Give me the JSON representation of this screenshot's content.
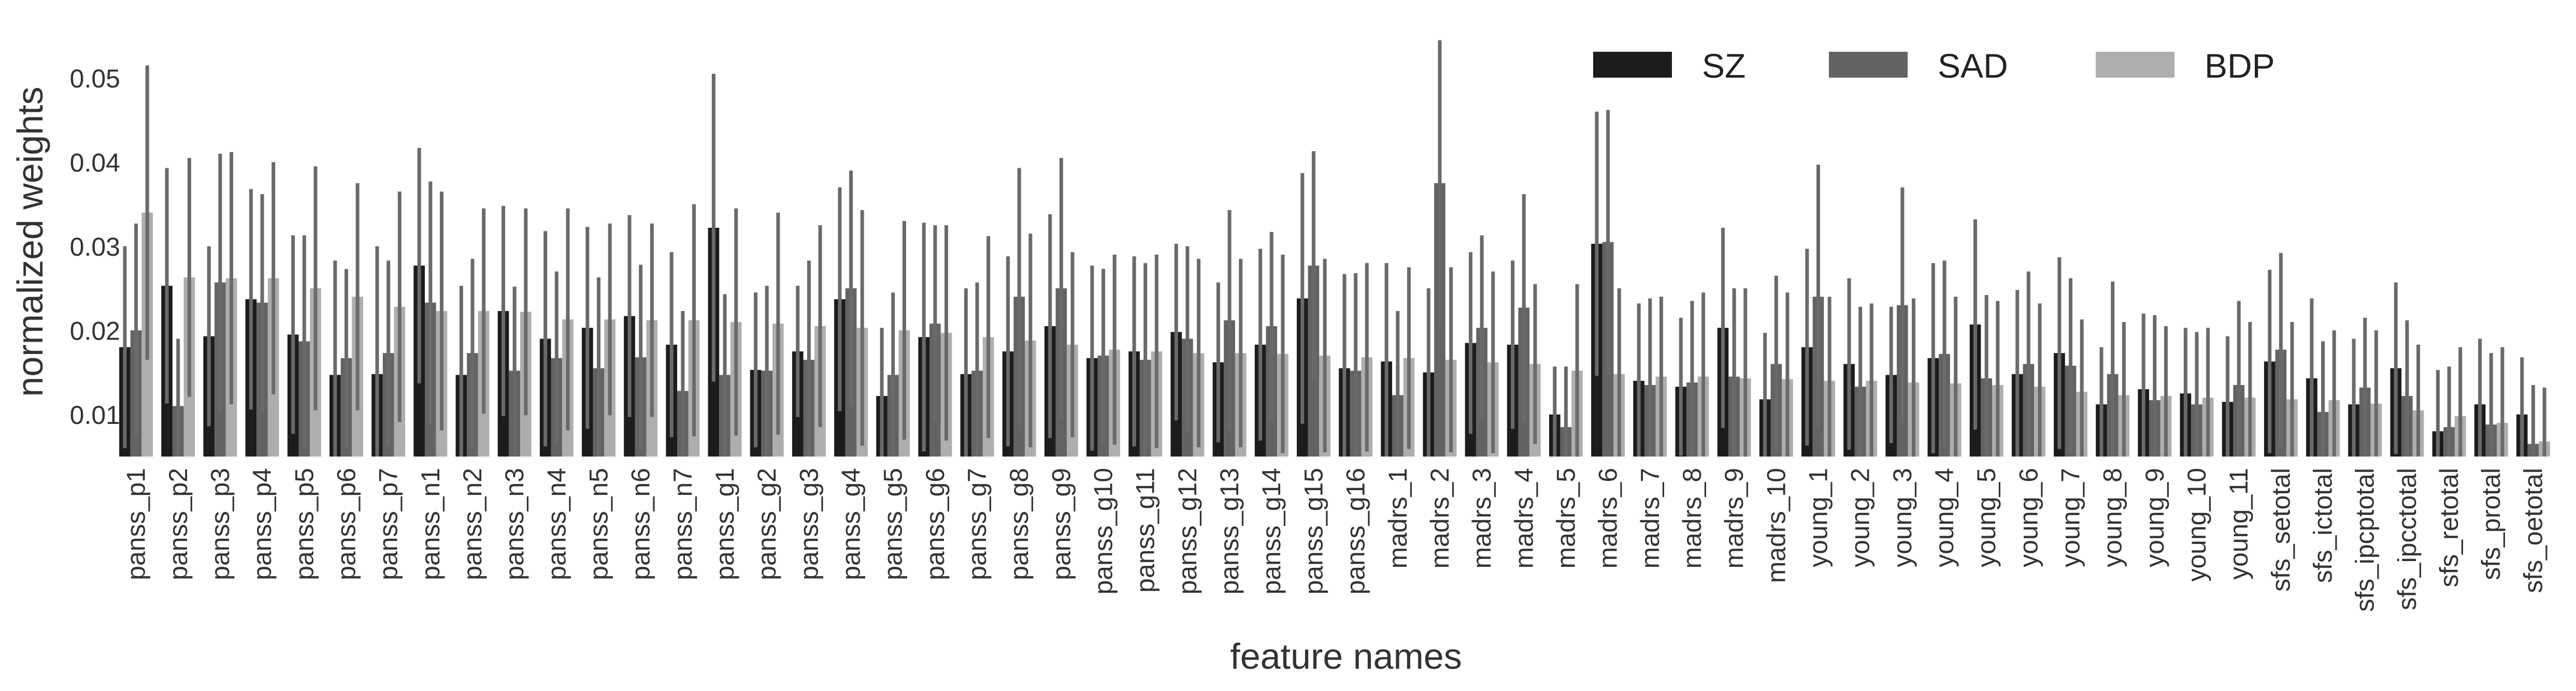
{
  "chart_data": {
    "type": "bar",
    "title": "",
    "xlabel": "feature names",
    "ylabel": "normalized weights",
    "ylim": [
      0.005,
      0.055
    ],
    "yticks": [
      0.01,
      0.02,
      0.03,
      0.04,
      0.05
    ],
    "ytick_labels": [
      "0.01",
      "0.02",
      "0.03",
      "0.04",
      "0.05"
    ],
    "grid": false,
    "legend": "top-right",
    "categories": [
      "panss_p1",
      "panss_p2",
      "panss_p3",
      "panss_p4",
      "panss_p5",
      "panss_p6",
      "panss_p7",
      "panss_n1",
      "panss_n2",
      "panss_n3",
      "panss_n4",
      "panss_n5",
      "panss_n6",
      "panss_n7",
      "panss_g1",
      "panss_g2",
      "panss_g3",
      "panss_g4",
      "panss_g5",
      "panss_g6",
      "panss_g7",
      "panss_g8",
      "panss_g9",
      "panss_g10",
      "panss_g11",
      "panss_g12",
      "panss_g13",
      "panss_g14",
      "panss_g15",
      "panss_g16",
      "madrs_1",
      "madrs_2",
      "madrs_3",
      "madrs_4",
      "madrs_5",
      "madrs_6",
      "madrs_7",
      "madrs_8",
      "madrs_9",
      "madrs_10",
      "young_1",
      "young_2",
      "young_3",
      "young_4",
      "young_5",
      "young_6",
      "young_7",
      "young_8",
      "young_9",
      "young_10",
      "young_11",
      "sfs_setotal",
      "sfs_ictotal",
      "sfs_ipcptotal",
      "sfs_ipcctotal",
      "sfs_retotal",
      "sfs_protal",
      "sfs_oetotal"
    ],
    "series": [
      {
        "name": "SZ",
        "color": "#1c1c1c",
        "values": [
          0.018,
          0.0253,
          0.0193,
          0.0237,
          0.0195,
          0.0147,
          0.0148,
          0.0277,
          0.0147,
          0.0223,
          0.019,
          0.0203,
          0.0217,
          0.0183,
          0.0322,
          0.0153,
          0.0175,
          0.0237,
          0.0122,
          0.0192,
          0.0148,
          0.0175,
          0.0205,
          0.0167,
          0.0175,
          0.0198,
          0.0162,
          0.0183,
          0.0238,
          0.0155,
          0.0163,
          0.015,
          0.0185,
          0.0183,
          0.01,
          0.0303,
          0.014,
          0.0133,
          0.0203,
          0.0118,
          0.018,
          0.016,
          0.0147,
          0.0167,
          0.0207,
          0.0148,
          0.0173,
          0.0112,
          0.013,
          0.0125,
          0.0115,
          0.0163,
          0.0143,
          0.0112,
          0.0155,
          0.008,
          0.0112,
          0.01
        ],
        "err_top": [
          0.03,
          0.0393,
          0.03,
          0.0368,
          0.0313,
          0.0283,
          0.03,
          0.0417,
          0.0253,
          0.0348,
          0.0318,
          0.0323,
          0.0337,
          0.0293,
          0.0505,
          0.0245,
          0.0253,
          0.037,
          0.0203,
          0.0328,
          0.025,
          0.0288,
          0.0338,
          0.0277,
          0.0288,
          0.0303,
          0.0257,
          0.0297,
          0.0387,
          0.0267,
          0.028,
          0.025,
          0.0293,
          0.0283,
          0.0157,
          0.046,
          0.0232,
          0.0215,
          0.0322,
          0.0197,
          0.0297,
          0.0262,
          0.0228,
          0.028,
          0.0332,
          0.0248,
          0.0287,
          0.018,
          0.022,
          0.0203,
          0.0193,
          0.0272,
          0.0238,
          0.019,
          0.0257,
          0.0153,
          0.019,
          0.0168
        ]
      },
      {
        "name": "SAD",
        "color": "#636363",
        "values": [
          0.02,
          0.011,
          0.0257,
          0.0233,
          0.0187,
          0.0167,
          0.0173,
          0.0233,
          0.0173,
          0.0152,
          0.0167,
          0.0155,
          0.0168,
          0.0128,
          0.0147,
          0.0152,
          0.0165,
          0.025,
          0.0147,
          0.0208,
          0.0152,
          0.024,
          0.025,
          0.017,
          0.0165,
          0.019,
          0.0212,
          0.0205,
          0.0277,
          0.0152,
          0.0123,
          0.0375,
          0.0203,
          0.0227,
          0.0085,
          0.0305,
          0.0135,
          0.0138,
          0.0145,
          0.016,
          0.024,
          0.0133,
          0.023,
          0.0172,
          0.0143,
          0.016,
          0.0158,
          0.0148,
          0.0117,
          0.0112,
          0.0135,
          0.0177,
          0.0103,
          0.0132,
          0.0122,
          0.0085,
          0.0088,
          0.0065
        ],
        "err_top": [
          0.0327,
          0.019,
          0.041,
          0.0362,
          0.0313,
          0.0273,
          0.0283,
          0.0377,
          0.0285,
          0.0252,
          0.027,
          0.0263,
          0.0278,
          0.0223,
          0.0243,
          0.0253,
          0.0283,
          0.039,
          0.0245,
          0.0325,
          0.0257,
          0.0393,
          0.0405,
          0.0273,
          0.028,
          0.03,
          0.0343,
          0.0317,
          0.0413,
          0.0268,
          0.0223,
          0.0545,
          0.0313,
          0.0362,
          0.0157,
          0.0462,
          0.0238,
          0.0235,
          0.025,
          0.0265,
          0.0397,
          0.0228,
          0.037,
          0.0283,
          0.0242,
          0.027,
          0.0262,
          0.0258,
          0.0218,
          0.0198,
          0.0235,
          0.0292,
          0.0187,
          0.0215,
          0.0212,
          0.0157,
          0.0173,
          0.0135
        ]
      },
      {
        "name": "BDP",
        "color": "#aeaeae",
        "values": [
          0.034,
          0.0263,
          0.0262,
          0.0262,
          0.025,
          0.024,
          0.0228,
          0.0223,
          0.0223,
          0.0222,
          0.0213,
          0.0213,
          0.0212,
          0.0212,
          0.021,
          0.0208,
          0.0205,
          0.0203,
          0.02,
          0.0197,
          0.0192,
          0.0188,
          0.0183,
          0.0177,
          0.0175,
          0.0173,
          0.0173,
          0.0172,
          0.017,
          0.0168,
          0.0167,
          0.0165,
          0.0162,
          0.016,
          0.0152,
          0.0148,
          0.0145,
          0.0145,
          0.0143,
          0.0142,
          0.014,
          0.014,
          0.0138,
          0.0137,
          0.0135,
          0.0133,
          0.0127,
          0.0123,
          0.0122,
          0.012,
          0.012,
          0.0118,
          0.0117,
          0.0113,
          0.0105,
          0.0098,
          0.009,
          0.0068
        ],
        "err_top": [
          0.0515,
          0.0405,
          0.0412,
          0.04,
          0.0395,
          0.0375,
          0.0365,
          0.0365,
          0.0345,
          0.0345,
          0.0345,
          0.0327,
          0.0327,
          0.035,
          0.0345,
          0.034,
          0.0325,
          0.0343,
          0.033,
          0.0325,
          0.0312,
          0.0315,
          0.0293,
          0.029,
          0.029,
          0.0285,
          0.0285,
          0.029,
          0.0285,
          0.028,
          0.0275,
          0.0275,
          0.027,
          0.0255,
          0.0255,
          0.025,
          0.024,
          0.0245,
          0.025,
          0.0245,
          0.024,
          0.0232,
          0.0238,
          0.024,
          0.0235,
          0.0232,
          0.0213,
          0.021,
          0.0205,
          0.0203,
          0.021,
          0.021,
          0.02,
          0.02,
          0.0183,
          0.018,
          0.018,
          0.0132
        ]
      }
    ]
  }
}
